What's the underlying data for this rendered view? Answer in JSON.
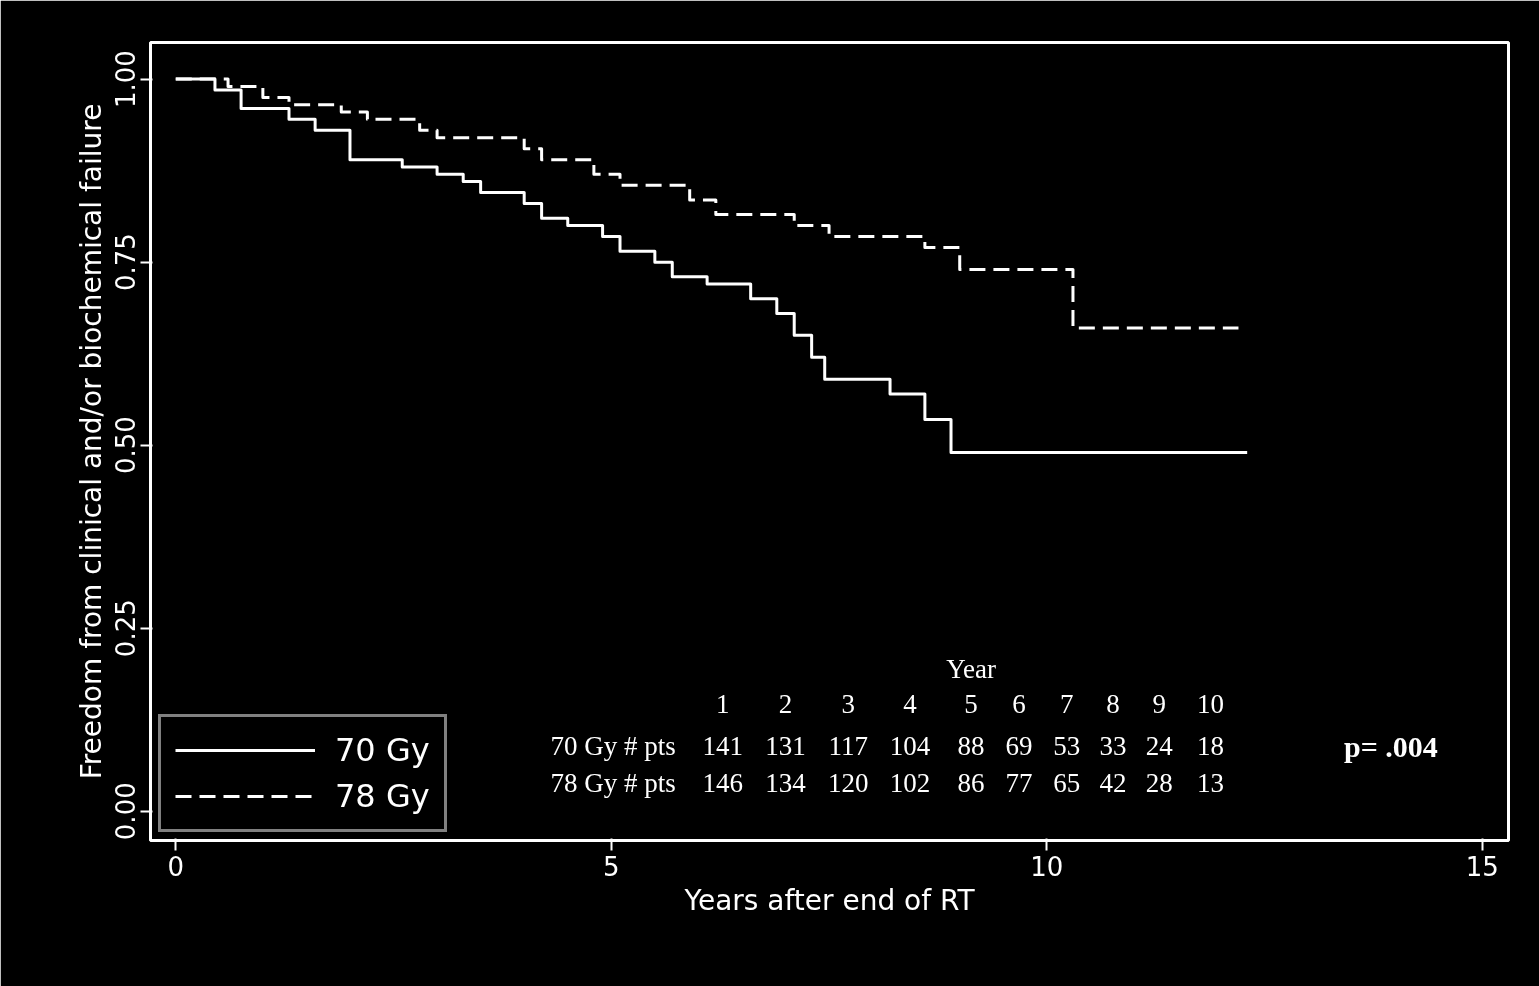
{
  "chart_data": {
    "type": "step",
    "xlabel": "Years after end of RT",
    "ylabel": "Freedom from clinical and/or biochemical failure",
    "xlim": [
      -0.29,
      15.3
    ],
    "ylim": [
      -0.04,
      1.05
    ],
    "xticks": [
      0,
      5,
      10,
      15
    ],
    "yticks": [
      {
        "value": 0,
        "label": "0.00"
      },
      {
        "value": 0.25,
        "label": "0.25"
      },
      {
        "value": 0.5,
        "label": "0.50"
      },
      {
        "value": 0.75,
        "label": "0.75"
      },
      {
        "value": 1,
        "label": "1.00"
      }
    ],
    "grid": false,
    "legend": "bottom left",
    "series": [
      {
        "name": "70 Gy",
        "color": "#ffffff",
        "line_style": "solid",
        "x": [
          0,
          0.45,
          0.75,
          1.3,
          1.6,
          2.0,
          2.6,
          3.0,
          3.3,
          3.5,
          4.0,
          4.2,
          4.5,
          4.9,
          5.1,
          5.5,
          5.7,
          6.1,
          6.6,
          6.9,
          7.1,
          7.3,
          7.45,
          8.2,
          8.6,
          8.9,
          12.3
        ],
        "values": [
          1.0,
          0.985,
          0.96,
          0.945,
          0.93,
          0.89,
          0.88,
          0.87,
          0.86,
          0.845,
          0.83,
          0.81,
          0.8,
          0.785,
          0.765,
          0.75,
          0.73,
          0.72,
          0.7,
          0.68,
          0.65,
          0.62,
          0.59,
          0.57,
          0.535,
          0.49,
          0.49
        ]
      },
      {
        "name": "78 Gy",
        "color": "#ffffff",
        "line_style": "dashed",
        "x": [
          0,
          0.6,
          1.0,
          1.3,
          1.9,
          2.2,
          2.8,
          3.0,
          4.0,
          4.2,
          4.8,
          5.1,
          5.9,
          6.2,
          7.1,
          7.5,
          8.6,
          9.0,
          10.3,
          12.2
        ],
        "values": [
          1.0,
          0.99,
          0.975,
          0.965,
          0.955,
          0.945,
          0.93,
          0.92,
          0.905,
          0.89,
          0.87,
          0.855,
          0.835,
          0.815,
          0.8,
          0.785,
          0.77,
          0.74,
          0.66,
          0.66
        ]
      }
    ],
    "annotations": [
      "Year",
      "1 2 3 4 5 6 7 8 9 10",
      "70 Gy # pts 141 131 117 104 88 69 53 33 24 18",
      "78 Gy # pts 146 134 120 102 86 77 65 42 28 13",
      "p= .004"
    ]
  }
}
